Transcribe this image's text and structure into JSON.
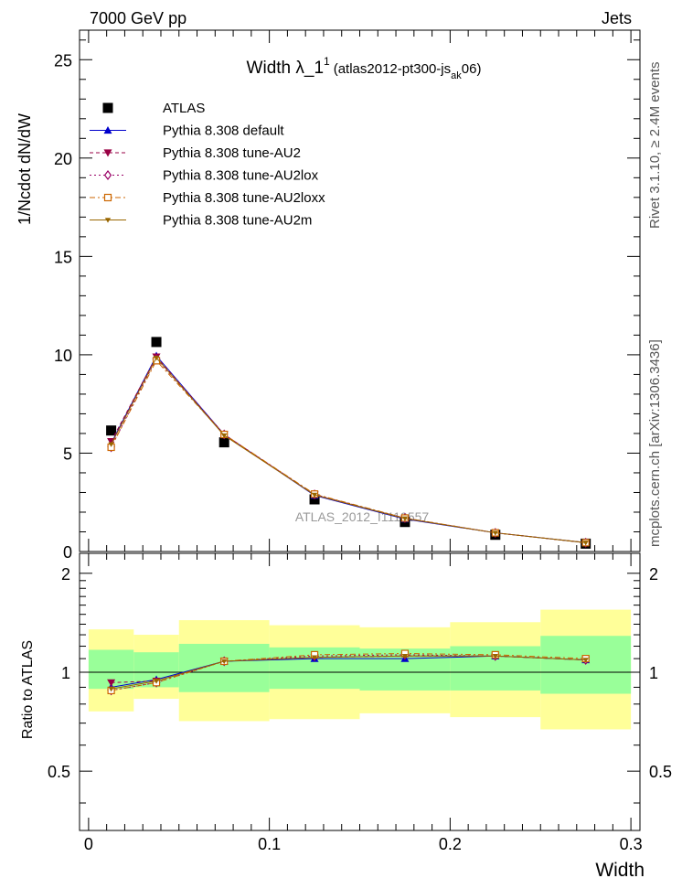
{
  "header": {
    "left": "7000 GeV pp",
    "right": "Jets"
  },
  "title": {
    "main": "Width λ_1",
    "sup": "1",
    "detail_pre": "(atlas2012-pt300-js",
    "detail_sub": "ak",
    "detail_post": "06)"
  },
  "side_text": {
    "rivet": "Rivet 3.1.10, ≥ 2.4M events",
    "mcplots": "mcplots.cern.ch [arXiv:1306.3436]"
  },
  "watermark": "ATLAS_2012_I1119557",
  "chart_data": [
    {
      "type": "line",
      "panel": "main",
      "ylabel": "1/Ncdot dN/dW",
      "ylim": [
        0,
        26.5
      ],
      "yticks": [
        0,
        5,
        10,
        15,
        20,
        25
      ],
      "yticks_labels": [
        "0",
        "5",
        "10",
        "15",
        "20",
        "25"
      ],
      "x": [
        0.0125,
        0.0375,
        0.075,
        0.125,
        0.175,
        0.225,
        0.275
      ],
      "series": [
        {
          "name": "ATLAS",
          "color": "#000000",
          "marker": "square-filled",
          "values": [
            6.15,
            10.65,
            5.55,
            2.65,
            1.5,
            0.85,
            0.4
          ]
        },
        {
          "name": "Pythia 8.308 default",
          "color": "#0000cc",
          "marker": "triangle-up-filled",
          "dash": "",
          "values": [
            5.5,
            9.95,
            5.95,
            2.85,
            1.65,
            0.95,
            0.45
          ]
        },
        {
          "name": "Pythia 8.308 tune-AU2",
          "color": "#990044",
          "marker": "triangle-down-filled",
          "dash": "4,3",
          "values": [
            5.6,
            9.9,
            5.95,
            2.88,
            1.68,
            0.95,
            0.45
          ]
        },
        {
          "name": "Pythia 8.308 tune-AU2lox",
          "color": "#990066",
          "marker": "diamond-open",
          "dash": "2,3",
          "values": [
            5.3,
            9.8,
            5.95,
            2.9,
            1.7,
            0.95,
            0.45
          ]
        },
        {
          "name": "Pythia 8.308 tune-AU2loxx",
          "color": "#cc6600",
          "marker": "square-open",
          "dash": "6,3,2,3",
          "values": [
            5.3,
            9.7,
            5.95,
            2.92,
            1.7,
            0.95,
            0.45
          ]
        },
        {
          "name": "Pythia 8.308 tune-AU2m",
          "color": "#996600",
          "marker": "triangle-down-small",
          "dash": "",
          "values": [
            5.45,
            9.85,
            5.9,
            2.88,
            1.68,
            0.95,
            0.45
          ]
        }
      ]
    },
    {
      "type": "line",
      "panel": "ratio",
      "xlabel": "Width",
      "ylabel": "Ratio to ATLAS",
      "xlim": [
        -0.005,
        0.305
      ],
      "ylim": [
        0.33,
        2.3
      ],
      "xticks": [
        0,
        0.1,
        0.2,
        0.3
      ],
      "xticks_labels": [
        "0",
        "0.1",
        "0.2",
        "0.3"
      ],
      "yticks": [
        0.5,
        1,
        2
      ],
      "yticks_labels": [
        "0.5",
        "1",
        "2"
      ],
      "bin_edges": [
        0,
        0.025,
        0.05,
        0.1,
        0.15,
        0.2,
        0.25,
        0.3
      ],
      "band_inner": [
        [
          0.89,
          1.17
        ],
        [
          0.9,
          1.15
        ],
        [
          0.87,
          1.22
        ],
        [
          0.89,
          1.19
        ],
        [
          0.88,
          1.18
        ],
        [
          0.88,
          1.2
        ],
        [
          0.86,
          1.29
        ]
      ],
      "band_outer": [
        [
          0.76,
          1.35
        ],
        [
          0.83,
          1.3
        ],
        [
          0.71,
          1.44
        ],
        [
          0.72,
          1.39
        ],
        [
          0.75,
          1.37
        ],
        [
          0.73,
          1.42
        ],
        [
          0.67,
          1.55
        ]
      ],
      "band_inner_color": "#99ff99",
      "band_outer_color": "#ffff99",
      "x": [
        0.0125,
        0.0375,
        0.075,
        0.125,
        0.175,
        0.225,
        0.275
      ],
      "series": [
        {
          "name": "Pythia 8.308 default",
          "color": "#0000cc",
          "values": [
            0.9,
            0.95,
            1.08,
            1.1,
            1.1,
            1.12,
            1.09
          ]
        },
        {
          "name": "Pythia 8.308 tune-AU2",
          "color": "#990044",
          "values": [
            0.93,
            0.94,
            1.08,
            1.11,
            1.12,
            1.12,
            1.09
          ]
        },
        {
          "name": "Pythia 8.308 tune-AU2lox",
          "color": "#990066",
          "values": [
            0.88,
            0.93,
            1.08,
            1.12,
            1.13,
            1.12,
            1.09
          ]
        },
        {
          "name": "Pythia 8.308 tune-AU2loxx",
          "color": "#cc6600",
          "values": [
            0.88,
            0.93,
            1.08,
            1.13,
            1.14,
            1.13,
            1.1
          ]
        },
        {
          "name": "Pythia 8.308 tune-AU2m",
          "color": "#996600",
          "values": [
            0.89,
            0.94,
            1.08,
            1.11,
            1.12,
            1.12,
            1.09
          ]
        }
      ]
    }
  ]
}
